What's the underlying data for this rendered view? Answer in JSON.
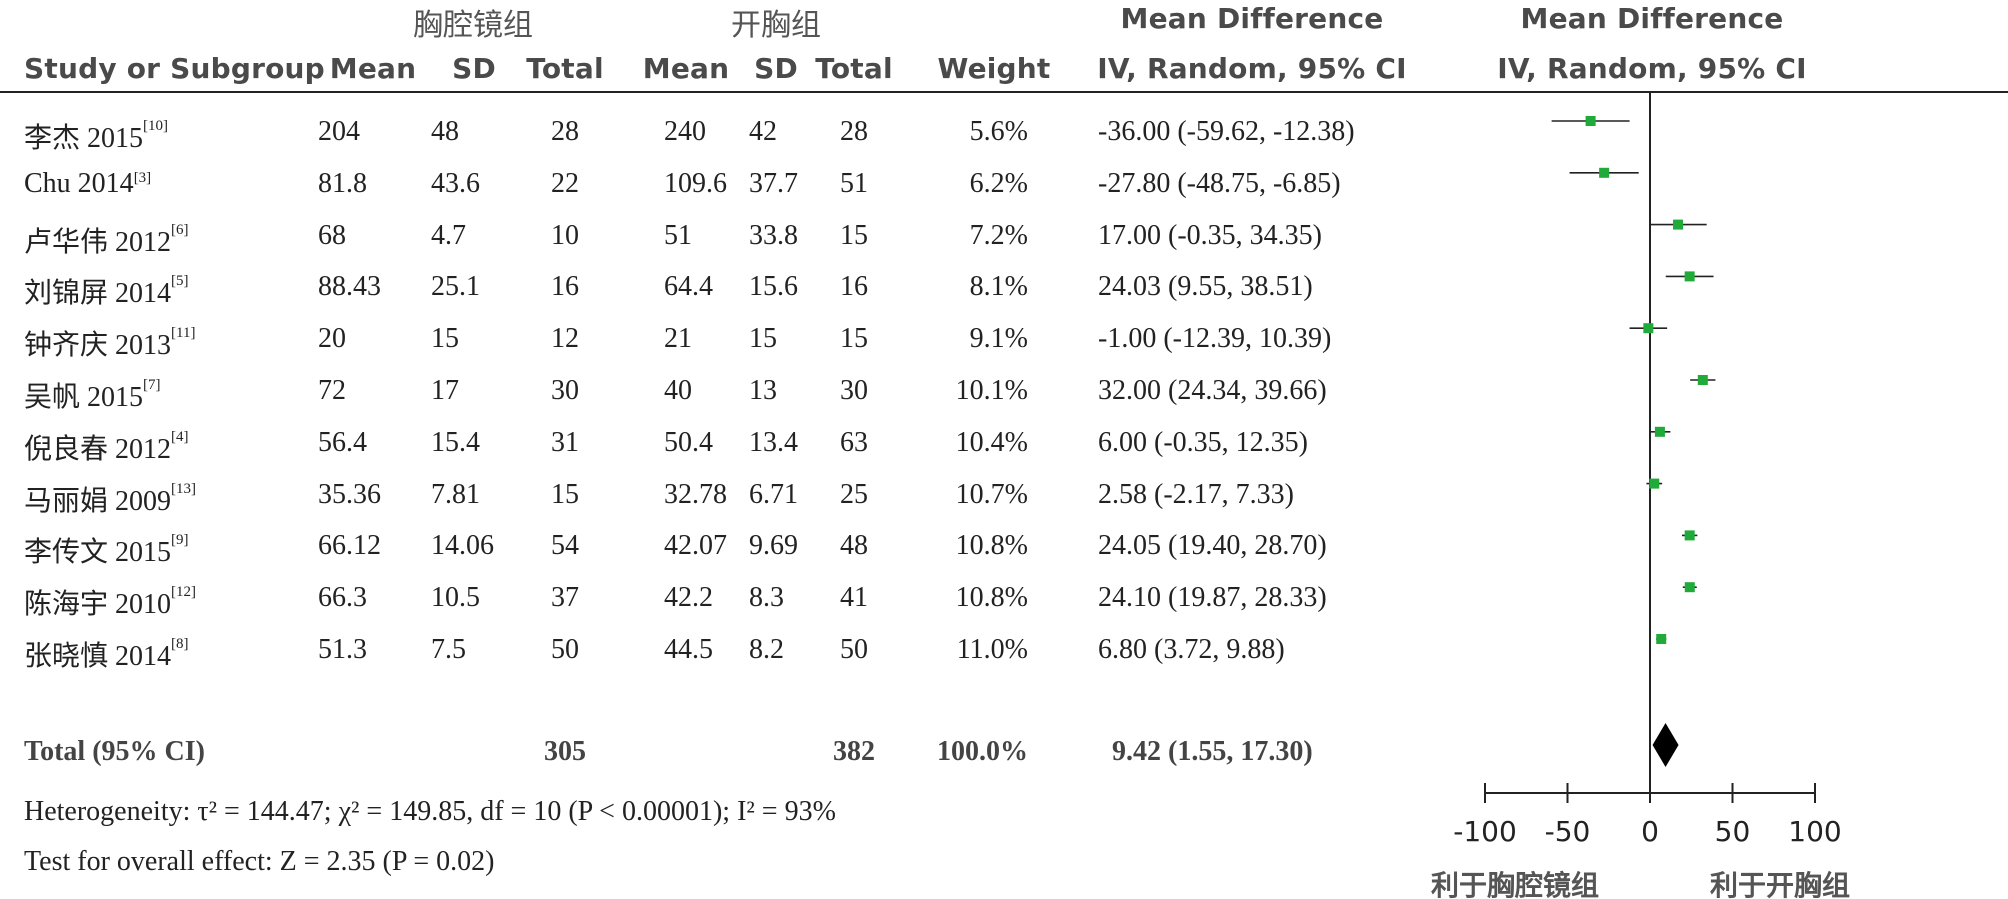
{
  "headers": {
    "group_experimental": "胸腔镜组",
    "group_control": "开胸组",
    "study": "Study or Subgroup",
    "mean": "Mean",
    "sd": "SD",
    "total": "Total",
    "weight": "Weight",
    "md_title": "Mean Difference",
    "md_method": "IV, Random, 95% CI"
  },
  "chart_data": {
    "type": "forest",
    "studies": [
      {
        "name": "李杰 2015",
        "ref": "[10]",
        "e_mean": "204",
        "e_sd": "48",
        "e_total": "28",
        "c_mean": "240",
        "c_sd": "42",
        "c_total": "28",
        "weight": "5.6%",
        "ci_text": "-36.00 (-59.62, -12.38)",
        "md": -36.0,
        "lo": -59.62,
        "hi": -12.38
      },
      {
        "name": "Chu 2014",
        "ref": "[3]",
        "e_mean": "81.8",
        "e_sd": "43.6",
        "e_total": "22",
        "c_mean": "109.6",
        "c_sd": "37.7",
        "c_total": "51",
        "weight": "6.2%",
        "ci_text": "-27.80 (-48.75, -6.85)",
        "md": -27.8,
        "lo": -48.75,
        "hi": -6.85
      },
      {
        "name": "卢华伟 2012",
        "ref": "[6]",
        "e_mean": "68",
        "e_sd": "4.7",
        "e_total": "10",
        "c_mean": "51",
        "c_sd": "33.8",
        "c_total": "15",
        "weight": "7.2%",
        "ci_text": "17.00 (-0.35, 34.35)",
        "md": 17.0,
        "lo": -0.35,
        "hi": 34.35
      },
      {
        "name": "刘锦屏 2014",
        "ref": "[5]",
        "e_mean": "88.43",
        "e_sd": "25.1",
        "e_total": "16",
        "c_mean": "64.4",
        "c_sd": "15.6",
        "c_total": "16",
        "weight": "8.1%",
        "ci_text": "24.03 (9.55, 38.51)",
        "md": 24.03,
        "lo": 9.55,
        "hi": 38.51
      },
      {
        "name": "钟齐庆 2013",
        "ref": "[11]",
        "e_mean": "20",
        "e_sd": "15",
        "e_total": "12",
        "c_mean": "21",
        "c_sd": "15",
        "c_total": "15",
        "weight": "9.1%",
        "ci_text": "-1.00 (-12.39, 10.39)",
        "md": -1.0,
        "lo": -12.39,
        "hi": 10.39
      },
      {
        "name": "吴帆 2015",
        "ref": "[7]",
        "e_mean": "72",
        "e_sd": "17",
        "e_total": "30",
        "c_mean": "40",
        "c_sd": "13",
        "c_total": "30",
        "weight": "10.1%",
        "ci_text": "32.00 (24.34, 39.66)",
        "md": 32.0,
        "lo": 24.34,
        "hi": 39.66
      },
      {
        "name": "倪良春 2012",
        "ref": "[4]",
        "e_mean": "56.4",
        "e_sd": "15.4",
        "e_total": "31",
        "c_mean": "50.4",
        "c_sd": "13.4",
        "c_total": "63",
        "weight": "10.4%",
        "ci_text": "6.00 (-0.35, 12.35)",
        "md": 6.0,
        "lo": -0.35,
        "hi": 12.35
      },
      {
        "name": "马丽娟 2009",
        "ref": "[13]",
        "e_mean": "35.36",
        "e_sd": "7.81",
        "e_total": "15",
        "c_mean": "32.78",
        "c_sd": "6.71",
        "c_total": "25",
        "weight": "10.7%",
        "ci_text": "2.58 (-2.17, 7.33)",
        "md": 2.58,
        "lo": -2.17,
        "hi": 7.33
      },
      {
        "name": "李传文 2015",
        "ref": "[9]",
        "e_mean": "66.12",
        "e_sd": "14.06",
        "e_total": "54",
        "c_mean": "42.07",
        "c_sd": "9.69",
        "c_total": "48",
        "weight": "10.8%",
        "ci_text": "24.05 (19.40, 28.70)",
        "md": 24.05,
        "lo": 19.4,
        "hi": 28.7
      },
      {
        "name": "陈海宇 2010",
        "ref": "[12]",
        "e_mean": "66.3",
        "e_sd": "10.5",
        "e_total": "37",
        "c_mean": "42.2",
        "c_sd": "8.3",
        "c_total": "41",
        "weight": "10.8%",
        "ci_text": "24.10 (19.87, 28.33)",
        "md": 24.1,
        "lo": 19.87,
        "hi": 28.33
      },
      {
        "name": "张晓慎 2014",
        "ref": "[8]",
        "e_mean": "51.3",
        "e_sd": "7.5",
        "e_total": "50",
        "c_mean": "44.5",
        "c_sd": "8.2",
        "c_total": "50",
        "weight": "11.0%",
        "ci_text": "6.80 (3.72, 9.88)",
        "md": 6.8,
        "lo": 3.72,
        "hi": 9.88
      }
    ],
    "total": {
      "label": "Total (95% CI)",
      "e_total": "305",
      "c_total": "382",
      "weight": "100.0%",
      "ci_text": "9.42 (1.55, 17.30)",
      "md": 9.42,
      "lo": 1.55,
      "hi": 17.3
    },
    "heterogeneity": "Heterogeneity: τ² = 144.47; χ² = 149.85, df = 10 (P < 0.00001); I² = 93%",
    "overall_effect": "Test for overall effect: Z = 2.35 (P = 0.02)",
    "xlim": [
      -100,
      100
    ],
    "xticks": [
      -100,
      -50,
      0,
      50,
      100
    ],
    "xtick_labels": [
      "-100",
      "-50",
      "0",
      "50",
      "100"
    ],
    "favours_left": "利于胸腔镜组",
    "favours_right": "利于开胸组",
    "marker_color": "#1faa3a",
    "diamond_color": "#000000"
  }
}
